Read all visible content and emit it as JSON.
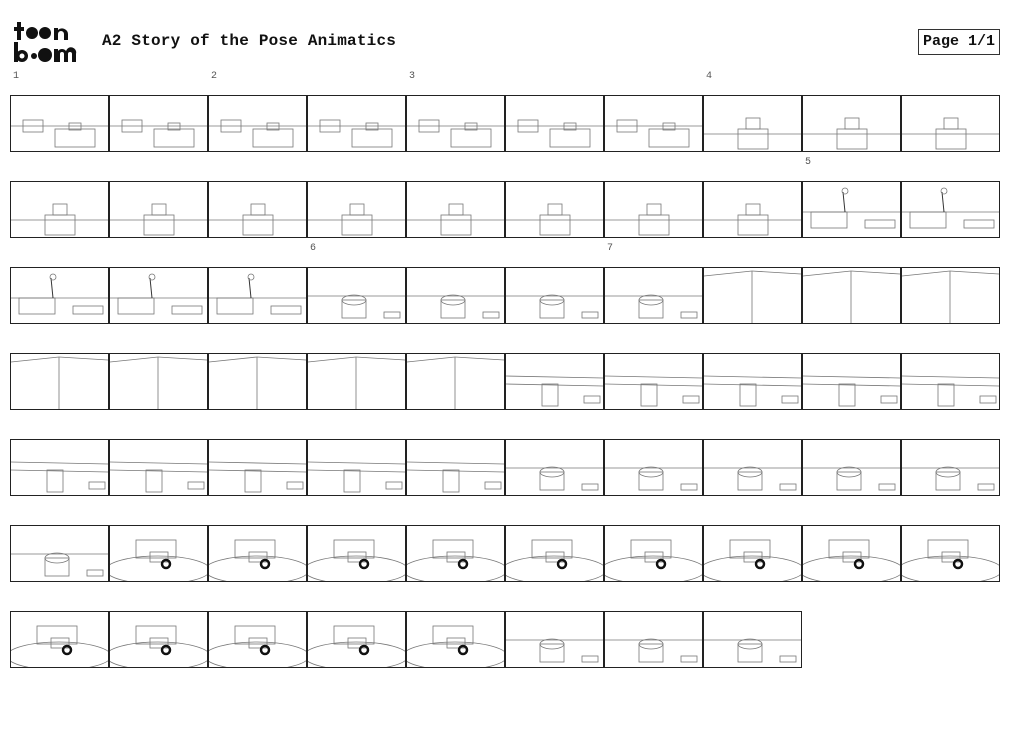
{
  "header": {
    "logo_text": "toonboom",
    "title": "A2 Story of the Pose Animatics",
    "page_label": "Page 1/1"
  },
  "storyboard": {
    "panel_count": 68,
    "columns": 10,
    "scenes": [
      {
        "number": "1",
        "first_panel": 1
      },
      {
        "number": "2",
        "first_panel": 3
      },
      {
        "number": "3",
        "first_panel": 5
      },
      {
        "number": "4",
        "first_panel": 8
      },
      {
        "number": "5",
        "first_panel": 19
      },
      {
        "number": "6",
        "first_panel": 24
      },
      {
        "number": "7",
        "first_panel": 27
      }
    ]
  }
}
